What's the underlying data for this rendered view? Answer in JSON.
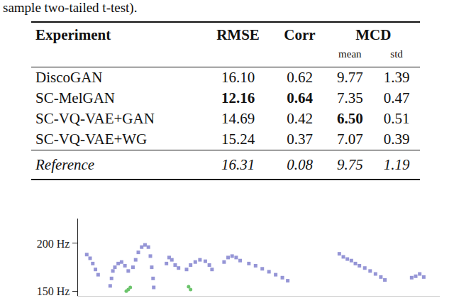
{
  "caption": "sample two-tailed t-test).",
  "table": {
    "header": [
      "Experiment",
      "RMSE",
      "Corr",
      "MCD"
    ],
    "subheader": [
      "mean",
      "std"
    ],
    "rows": [
      {
        "cells": [
          {
            "text": "DiscoGAN"
          },
          {
            "text": "16.10"
          },
          {
            "text": "0.62"
          },
          {
            "text": "9.77"
          },
          {
            "text": "1.39"
          }
        ]
      },
      {
        "cells": [
          {
            "text": "SC-MelGAN"
          },
          {
            "text": "12.16",
            "bold": true
          },
          {
            "text": "0.64",
            "bold": true
          },
          {
            "text": "7.35"
          },
          {
            "text": "0.47"
          }
        ]
      },
      {
        "cells": [
          {
            "text": "SC-VQ-VAE+GAN"
          },
          {
            "text": "14.69"
          },
          {
            "text": "0.42"
          },
          {
            "text": "6.50",
            "bold": true
          },
          {
            "text": "0.51"
          }
        ]
      },
      {
        "cells": [
          {
            "text": "SC-VQ-VAE+WG"
          },
          {
            "text": "15.24"
          },
          {
            "text": "0.37"
          },
          {
            "text": "7.07"
          },
          {
            "text": "0.39"
          }
        ]
      },
      {
        "cells": [
          {
            "text": "Reference"
          },
          {
            "text": "16.31"
          },
          {
            "text": "0.08"
          },
          {
            "text": "9.75"
          },
          {
            "text": "1.19"
          }
        ],
        "italic": true
      }
    ]
  },
  "chart_data": {
    "type": "scatter",
    "xlim": [
      0,
      540
    ],
    "ylim": [
      145,
      226
    ],
    "yticks": [
      {
        "value": 150,
        "label": "150 Hz"
      },
      {
        "value": 200,
        "label": "200 Hz"
      }
    ],
    "tick_labels": "y",
    "grid": false,
    "series": [
      {
        "color": "#9595d6",
        "marker": "square",
        "x": [
          13,
          18,
          22,
          26,
          30,
          48,
          50,
          52,
          55,
          60,
          65,
          70,
          75,
          82,
          86,
          90,
          95,
          100,
          105,
          108,
          110,
          112,
          113,
          132,
          136,
          140,
          145,
          150,
          162,
          168,
          175,
          182,
          190,
          196,
          200,
          218,
          224,
          230,
          236,
          242,
          255,
          265,
          275,
          285,
          295,
          305,
          313,
          390,
          396,
          402,
          408,
          414,
          420,
          428,
          436,
          444,
          452,
          458,
          498,
          504,
          510,
          516
        ],
        "values": [
          188.3,
          184.4,
          178.9,
          172.7,
          167.2,
          155.5,
          163.3,
          171.1,
          175.0,
          178.9,
          180.5,
          176.6,
          171.1,
          175.0,
          182.8,
          190.6,
          196.1,
          198.4,
          196.1,
          186.7,
          175.0,
          163.3,
          153.9,
          178.9,
          185.2,
          182.8,
          177.3,
          174.2,
          172.7,
          177.3,
          180.5,
          182.8,
          181.3,
          177.3,
          172.7,
          180.5,
          185.2,
          186.7,
          185.2,
          182.0,
          178.9,
          176.6,
          173.4,
          170.3,
          167.2,
          164.1,
          160.9,
          189.1,
          185.9,
          183.6,
          182.0,
          178.9,
          176.6,
          174.2,
          171.1,
          168.0,
          164.8,
          161.7,
          164.1,
          165.6,
          168.0,
          164.8
        ]
      },
      {
        "color": "#6cc46c",
        "marker": "circle",
        "x": [
          72,
          75,
          78,
          165,
          168
        ],
        "values": [
          150.0,
          151.6,
          153.9,
          154.7,
          151.6
        ]
      }
    ]
  }
}
